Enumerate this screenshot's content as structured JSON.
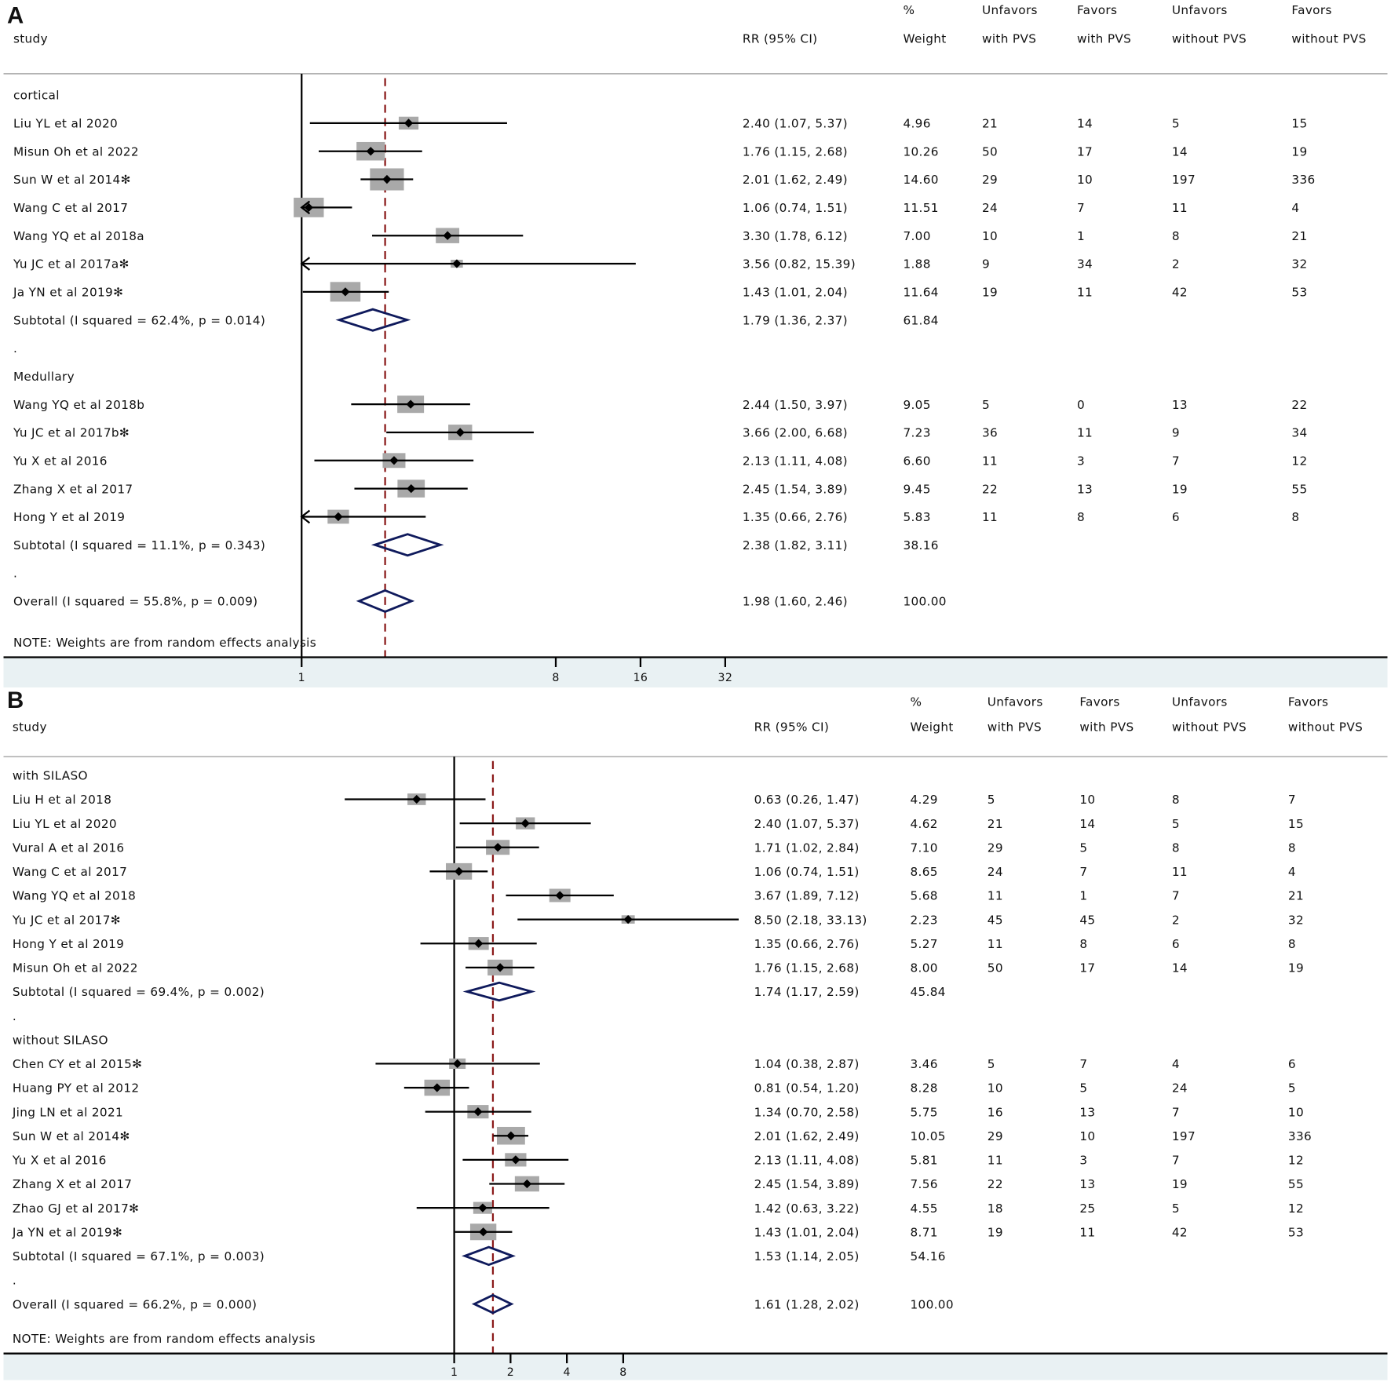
{
  "colors": {
    "null_line": "#000000",
    "ref_line": "#8b1a1a",
    "diamond": "#0f1a5c",
    "box": "#a9a9a9",
    "axis_band": "#e9f1f3"
  },
  "chart_data": [
    {
      "type": "forest",
      "panel": "A",
      "scale": "log",
      "headers": {
        "line1": [
          "",
          "",
          "%",
          "Unfavors",
          "Favors",
          "Unfavors",
          "Favors"
        ],
        "line2": [
          "study",
          "RR (95% CI)",
          "Weight",
          "with PVS",
          "with PVS",
          "without PVS",
          "without PVS"
        ]
      },
      "axis_ticks": [
        1,
        8,
        16,
        32
      ],
      "axis_tick_labels": [
        "1",
        "8",
        "16",
        "32"
      ],
      "axis_min": 1,
      "ref_value": 1.98,
      "groups": [
        {
          "label": "cortical",
          "studies": [
            {
              "study": "Liu YL et al 2020",
              "rr": 2.4,
              "lo": 1.07,
              "hi": 5.37,
              "ci_text": "2.40 (1.07, 5.37)",
              "weight": "4.96",
              "counts": [
                "21",
                "14",
                "5",
                "15"
              ]
            },
            {
              "study": "Misun Oh et al 2022",
              "rr": 1.76,
              "lo": 1.15,
              "hi": 2.68,
              "ci_text": "1.76 (1.15, 2.68)",
              "weight": "10.26",
              "counts": [
                "50",
                "17",
                "14",
                "19"
              ]
            },
            {
              "study": "Sun W et al 2014✻",
              "rr": 2.01,
              "lo": 1.62,
              "hi": 2.49,
              "ci_text": "2.01 (1.62, 2.49)",
              "weight": "14.60",
              "counts": [
                "29",
                "10",
                "197",
                "336"
              ]
            },
            {
              "study": "Wang C et al 2017",
              "rr": 1.06,
              "lo": 0.74,
              "hi": 1.51,
              "ci_text": "1.06 (0.74, 1.51)",
              "weight": "11.51",
              "counts": [
                "24",
                "7",
                "11",
                "4"
              ]
            },
            {
              "study": "Wang YQ et al 2018a",
              "rr": 3.3,
              "lo": 1.78,
              "hi": 6.12,
              "ci_text": "3.30 (1.78, 6.12)",
              "weight": "7.00",
              "counts": [
                "10",
                "1",
                "8",
                "21"
              ]
            },
            {
              "study": "Yu JC et al 2017a✻",
              "rr": 3.56,
              "lo": 0.82,
              "hi": 15.39,
              "ci_text": "3.56 (0.82, 15.39)",
              "weight": "1.88",
              "counts": [
                "9",
                "34",
                "2",
                "32"
              ]
            },
            {
              "study": "Ja YN et al 2019✻",
              "rr": 1.43,
              "lo": 1.01,
              "hi": 2.04,
              "ci_text": "1.43 (1.01, 2.04)",
              "weight": "11.64",
              "counts": [
                "19",
                "11",
                "42",
                "53"
              ]
            }
          ],
          "subtotal": {
            "label": "Subtotal  (I   squared = 62.4%, p = 0.014)",
            "rr": 1.79,
            "lo": 1.36,
            "hi": 2.37,
            "ci_text": "1.79 (1.36, 2.37)",
            "weight": "61.84"
          }
        },
        {
          "label": "Medullary",
          "studies": [
            {
              "study": "Wang YQ et al 2018b",
              "rr": 2.44,
              "lo": 1.5,
              "hi": 3.97,
              "ci_text": "2.44 (1.50, 3.97)",
              "weight": "9.05",
              "counts": [
                "5",
                "0",
                "13",
                "22"
              ]
            },
            {
              "study": "Yu JC et al 2017b✻",
              "rr": 3.66,
              "lo": 2.0,
              "hi": 6.68,
              "ci_text": "3.66 (2.00, 6.68)",
              "weight": "7.23",
              "counts": [
                "36",
                "11",
                "9",
                "34"
              ]
            },
            {
              "study": "Yu X et al 2016",
              "rr": 2.13,
              "lo": 1.11,
              "hi": 4.08,
              "ci_text": "2.13 (1.11, 4.08)",
              "weight": "6.60",
              "counts": [
                "11",
                "3",
                "7",
                "12"
              ]
            },
            {
              "study": "Zhang X et al 2017",
              "rr": 2.45,
              "lo": 1.54,
              "hi": 3.89,
              "ci_text": "2.45 (1.54, 3.89)",
              "weight": "9.45",
              "counts": [
                "22",
                "13",
                "19",
                "55"
              ]
            },
            {
              "study": "Hong Y et al 2019",
              "rr": 1.35,
              "lo": 0.66,
              "hi": 2.76,
              "ci_text": "1.35 (0.66, 2.76)",
              "weight": "5.83",
              "counts": [
                "11",
                "8",
                "6",
                "8"
              ]
            }
          ],
          "subtotal": {
            "label": "Subtotal  (I   squared = 11.1%, p = 0.343)",
            "rr": 2.38,
            "lo": 1.82,
            "hi": 3.11,
            "ci_text": "2.38 (1.82, 3.11)",
            "weight": "38.16"
          }
        }
      ],
      "overall": {
        "label": "Overall  (I   squared = 55.8%, p = 0.009)",
        "rr": 1.98,
        "lo": 1.6,
        "hi": 2.46,
        "ci_text": "1.98 (1.60, 2.46)",
        "weight": "100.00"
      },
      "separator": ".",
      "note": "NOTE: Weights are from random effects analysis"
    },
    {
      "type": "forest",
      "panel": "B",
      "scale": "log",
      "headers": {
        "line1": [
          "",
          "",
          "%",
          "Unfavors",
          "Favors",
          "Unfavors",
          "Favors"
        ],
        "line2": [
          "study",
          "RR (95% CI)",
          "Weight",
          "with PVS",
          "with PVS",
          "without PVS",
          "without PVS"
        ]
      },
      "axis_ticks": [
        1,
        2,
        4,
        8
      ],
      "axis_tick_labels": [
        "1",
        "2",
        "4",
        "8"
      ],
      "axis_min": 0.2,
      "ref_value": 1.61,
      "groups": [
        {
          "label": "with SILASO",
          "studies": [
            {
              "study": "Liu H et al 2018",
              "rr": 0.63,
              "lo": 0.26,
              "hi": 1.47,
              "ci_text": "0.63 (0.26, 1.47)",
              "weight": "4.29",
              "counts": [
                "5",
                "10",
                "8",
                "7"
              ]
            },
            {
              "study": "Liu YL et al 2020",
              "rr": 2.4,
              "lo": 1.07,
              "hi": 5.37,
              "ci_text": "2.40 (1.07, 5.37)",
              "weight": "4.62",
              "counts": [
                "21",
                "14",
                "5",
                "15"
              ]
            },
            {
              "study": "Vural A et al 2016",
              "rr": 1.71,
              "lo": 1.02,
              "hi": 2.84,
              "ci_text": "1.71 (1.02, 2.84)",
              "weight": "7.10",
              "counts": [
                "29",
                "5",
                "8",
                "8"
              ]
            },
            {
              "study": "Wang C et al 2017",
              "rr": 1.06,
              "lo": 0.74,
              "hi": 1.51,
              "ci_text": "1.06 (0.74, 1.51)",
              "weight": "8.65",
              "counts": [
                "24",
                "7",
                "11",
                "4"
              ]
            },
            {
              "study": "Wang YQ et al 2018",
              "rr": 3.67,
              "lo": 1.89,
              "hi": 7.12,
              "ci_text": "3.67 (1.89, 7.12)",
              "weight": "5.68",
              "counts": [
                "11",
                "1",
                "7",
                "21"
              ]
            },
            {
              "study": "Yu JC et al 2017✻",
              "rr": 8.5,
              "lo": 2.18,
              "hi": 33.13,
              "ci_text": "8.50 (2.18, 33.13)",
              "weight": "2.23",
              "counts": [
                "45",
                "45",
                "2",
                "32"
              ]
            },
            {
              "study": "Hong Y et al 2019",
              "rr": 1.35,
              "lo": 0.66,
              "hi": 2.76,
              "ci_text": "1.35 (0.66, 2.76)",
              "weight": "5.27",
              "counts": [
                "11",
                "8",
                "6",
                "8"
              ]
            },
            {
              "study": "Misun Oh et al 2022",
              "rr": 1.76,
              "lo": 1.15,
              "hi": 2.68,
              "ci_text": "1.76 (1.15, 2.68)",
              "weight": "8.00",
              "counts": [
                "50",
                "17",
                "14",
                "19"
              ]
            }
          ],
          "subtotal": {
            "label": "Subtotal  (I   squared = 69.4%, p = 0.002)",
            "rr": 1.74,
            "lo": 1.17,
            "hi": 2.59,
            "ci_text": "1.74 (1.17, 2.59)",
            "weight": "45.84"
          }
        },
        {
          "label": "without SILASO",
          "studies": [
            {
              "study": "Chen CY et al 2015✻",
              "rr": 1.04,
              "lo": 0.38,
              "hi": 2.87,
              "ci_text": "1.04 (0.38, 2.87)",
              "weight": "3.46",
              "counts": [
                "5",
                "7",
                "4",
                "6"
              ]
            },
            {
              "study": "Huang PY et al 2012",
              "rr": 0.81,
              "lo": 0.54,
              "hi": 1.2,
              "ci_text": "0.81 (0.54, 1.20)",
              "weight": "8.28",
              "counts": [
                "10",
                "5",
                "24",
                "5"
              ]
            },
            {
              "study": "Jing LN et al 2021",
              "rr": 1.34,
              "lo": 0.7,
              "hi": 2.58,
              "ci_text": "1.34 (0.70, 2.58)",
              "weight": "5.75",
              "counts": [
                "16",
                "13",
                "7",
                "10"
              ]
            },
            {
              "study": "Sun W et al 2014✻",
              "rr": 2.01,
              "lo": 1.62,
              "hi": 2.49,
              "ci_text": "2.01 (1.62, 2.49)",
              "weight": "10.05",
              "counts": [
                "29",
                "10",
                "197",
                "336"
              ]
            },
            {
              "study": "Yu X et al 2016",
              "rr": 2.13,
              "lo": 1.11,
              "hi": 4.08,
              "ci_text": "2.13 (1.11, 4.08)",
              "weight": "5.81",
              "counts": [
                "11",
                "3",
                "7",
                "12"
              ]
            },
            {
              "study": "Zhang X et al 2017",
              "rr": 2.45,
              "lo": 1.54,
              "hi": 3.89,
              "ci_text": "2.45 (1.54, 3.89)",
              "weight": "7.56",
              "counts": [
                "22",
                "13",
                "19",
                "55"
              ]
            },
            {
              "study": "Zhao GJ et al 2017✻",
              "rr": 1.42,
              "lo": 0.63,
              "hi": 3.22,
              "ci_text": "1.42 (0.63, 3.22)",
              "weight": "4.55",
              "counts": [
                "18",
                "25",
                "5",
                "12"
              ]
            },
            {
              "study": "Ja YN et al 2019✻",
              "rr": 1.43,
              "lo": 1.01,
              "hi": 2.04,
              "ci_text": "1.43 (1.01, 2.04)",
              "weight": "8.71",
              "counts": [
                "19",
                "11",
                "42",
                "53"
              ]
            }
          ],
          "subtotal": {
            "label": "Subtotal  (I   squared = 67.1%, p = 0.003)",
            "rr": 1.53,
            "lo": 1.14,
            "hi": 2.05,
            "ci_text": "1.53 (1.14, 2.05)",
            "weight": "54.16"
          }
        }
      ],
      "overall": {
        "label": "Overall  (I   squared = 66.2%, p = 0.000)",
        "rr": 1.61,
        "lo": 1.28,
        "hi": 2.02,
        "ci_text": "1.61 (1.28, 2.02)",
        "weight": "100.00"
      },
      "separator": ".",
      "note": "NOTE: Weights are from random effects analysis"
    }
  ]
}
